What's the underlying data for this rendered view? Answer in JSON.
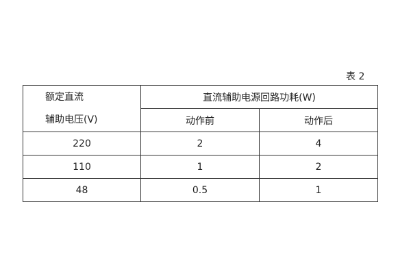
{
  "caption": "表 2",
  "table": {
    "header_col1_line1": "额定直流",
    "header_col1_line2": "辅助电压(V)",
    "header_group": "直流辅助电源回路功耗(W)",
    "subheaders": [
      "动作前",
      "动作后"
    ],
    "rows": [
      [
        "220",
        "2",
        "4"
      ],
      [
        "110",
        "1",
        "2"
      ],
      [
        "48",
        "0.5",
        "1"
      ]
    ]
  }
}
